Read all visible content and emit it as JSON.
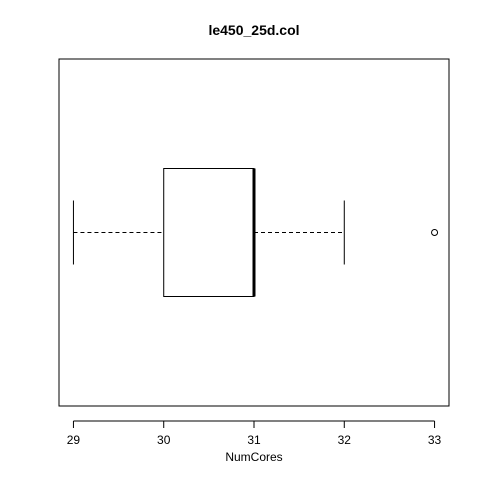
{
  "chart_data": {
    "type": "boxplot",
    "orientation": "horizontal",
    "title": "le450_25d.col",
    "xlabel": "NumCores",
    "ylabel": "",
    "xlim": [
      28.84,
      33.16
    ],
    "x_ticks": [
      29,
      30,
      31,
      32,
      33
    ],
    "x_tick_labels": [
      "29",
      "30",
      "31",
      "32",
      "33"
    ],
    "box": {
      "whisker_low": 29,
      "q1": 30,
      "median": 31,
      "q3": 31,
      "whisker_high": 32,
      "outliers": [
        33
      ]
    },
    "grid": false,
    "legend": "none"
  }
}
